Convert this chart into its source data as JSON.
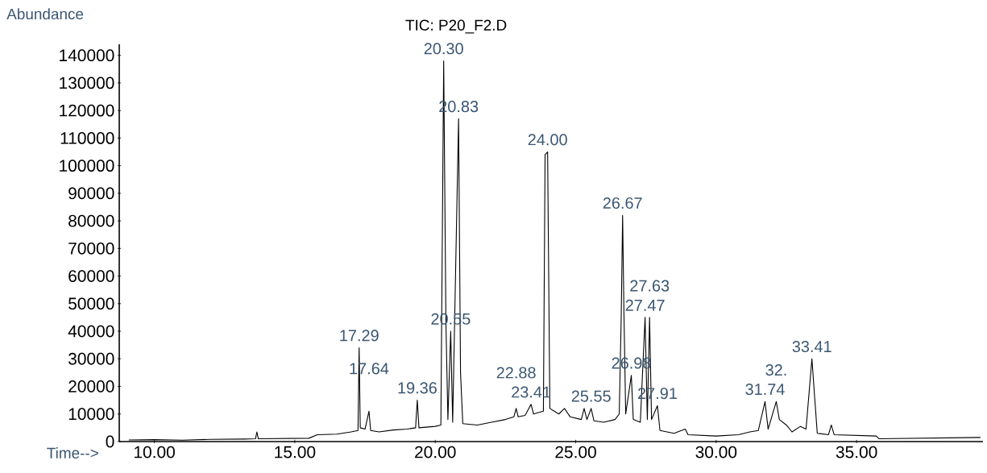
{
  "chart_data": {
    "type": "line",
    "title": "TIC: P20_F2.D",
    "xlabel": "Time-->",
    "ylabel": "Abundance",
    "xlim": [
      8.75,
      39.5
    ],
    "xticks": [
      {
        "value": 10,
        "label": "10.00"
      },
      {
        "value": 15,
        "label": "15.00"
      },
      {
        "value": 20,
        "label": "20.00"
      },
      {
        "value": 25,
        "label": "25.00"
      },
      {
        "value": 30,
        "label": "30.00"
      },
      {
        "value": 35,
        "label": "35.00"
      }
    ],
    "ylim": [
      0,
      144000
    ],
    "yticks": [
      0,
      10000,
      20000,
      30000,
      40000,
      50000,
      60000,
      70000,
      80000,
      90000,
      100000,
      110000,
      120000,
      130000,
      140000
    ],
    "grid": false,
    "marker": "none",
    "line_style": "solid",
    "x": [
      9.1,
      10,
      11,
      12,
      13.2,
      13.6,
      13.65,
      13.7,
      15.5,
      15.8,
      16.5,
      17.0,
      17.25,
      17.29,
      17.33,
      17.5,
      17.64,
      17.7,
      18.0,
      18.5,
      19.0,
      19.3,
      19.36,
      19.42,
      20.0,
      20.2,
      20.3,
      20.38,
      20.45,
      20.55,
      20.62,
      20.83,
      20.9,
      20.98,
      21.5,
      22.0,
      22.5,
      22.8,
      22.88,
      22.95,
      23.2,
      23.41,
      23.5,
      23.85,
      23.91,
      24.0,
      24.08,
      24.4,
      24.6,
      24.8,
      25.2,
      25.3,
      25.4,
      25.55,
      25.65,
      26.0,
      26.4,
      26.55,
      26.62,
      26.67,
      26.72,
      26.78,
      26.98,
      27.05,
      27.3,
      27.47,
      27.55,
      27.63,
      27.7,
      27.91,
      28.0,
      28.5,
      28.9,
      29.0,
      30.0,
      30.8,
      31.2,
      31.5,
      31.74,
      31.85,
      32.14,
      32.25,
      32.5,
      32.7,
      33.0,
      33.2,
      33.41,
      33.5,
      33.6,
      34.0,
      34.1,
      34.2,
      35.7,
      35.8,
      39.4
    ],
    "series": [
      {
        "color": "#000000",
        "values": [
          600,
          700,
          500,
          800,
          900,
          1000,
          3500,
          1000,
          1200,
          2500,
          2700,
          3500,
          4000,
          34000,
          5000,
          4500,
          11000,
          4000,
          3500,
          4200,
          4500,
          5000,
          15000,
          5000,
          5500,
          6000,
          138000,
          43000,
          8000,
          40000,
          7000,
          117000,
          25000,
          6500,
          6000,
          7000,
          8000,
          9000,
          12000,
          9000,
          9500,
          13500,
          10000,
          11000,
          104000,
          105000,
          12000,
          10000,
          12000,
          9000,
          8000,
          12000,
          8000,
          12000,
          7500,
          7000,
          8000,
          10000,
          45000,
          82000,
          45000,
          10000,
          24000,
          8000,
          7000,
          45000,
          8000,
          45000,
          8000,
          13000,
          4000,
          3000,
          4500,
          2500,
          2000,
          2500,
          3500,
          4000,
          14500,
          4500,
          14500,
          8000,
          6000,
          3500,
          5500,
          4500,
          30000,
          17000,
          3000,
          2500,
          6000,
          2500,
          2000,
          1000,
          1500
        ]
      }
    ],
    "annotations": [
      {
        "text": "20.30",
        "x": 20.3,
        "y": 138000
      },
      {
        "text": "20.83",
        "x": 20.83,
        "y": 117000
      },
      {
        "text": "24.00",
        "x": 24.0,
        "y": 105000
      },
      {
        "text": "26.67",
        "x": 26.67,
        "y": 82000
      },
      {
        "text": "27.47",
        "x": 27.47,
        "y": 45000
      },
      {
        "text": "27.63",
        "x": 27.63,
        "y": 45000
      },
      {
        "text": "20.55",
        "x": 20.55,
        "y": 40000
      },
      {
        "text": "17.29",
        "x": 17.29,
        "y": 34000
      },
      {
        "text": "33.41",
        "x": 33.41,
        "y": 30000
      },
      {
        "text": "26.98",
        "x": 26.98,
        "y": 24000
      },
      {
        "text": "19.36",
        "x": 19.36,
        "y": 15000
      },
      {
        "text": "31.74",
        "x": 31.74,
        "y": 14500
      },
      {
        "text": "32.",
        "x": 32.14,
        "y": 14500
      },
      {
        "text": "23.41",
        "x": 23.41,
        "y": 13500
      },
      {
        "text": "27.91",
        "x": 27.91,
        "y": 13000
      },
      {
        "text": "22.88",
        "x": 22.88,
        "y": 12000
      },
      {
        "text": "25.55",
        "x": 25.55,
        "y": 12000
      },
      {
        "text": "17.64",
        "x": 17.64,
        "y": 11000
      }
    ]
  }
}
